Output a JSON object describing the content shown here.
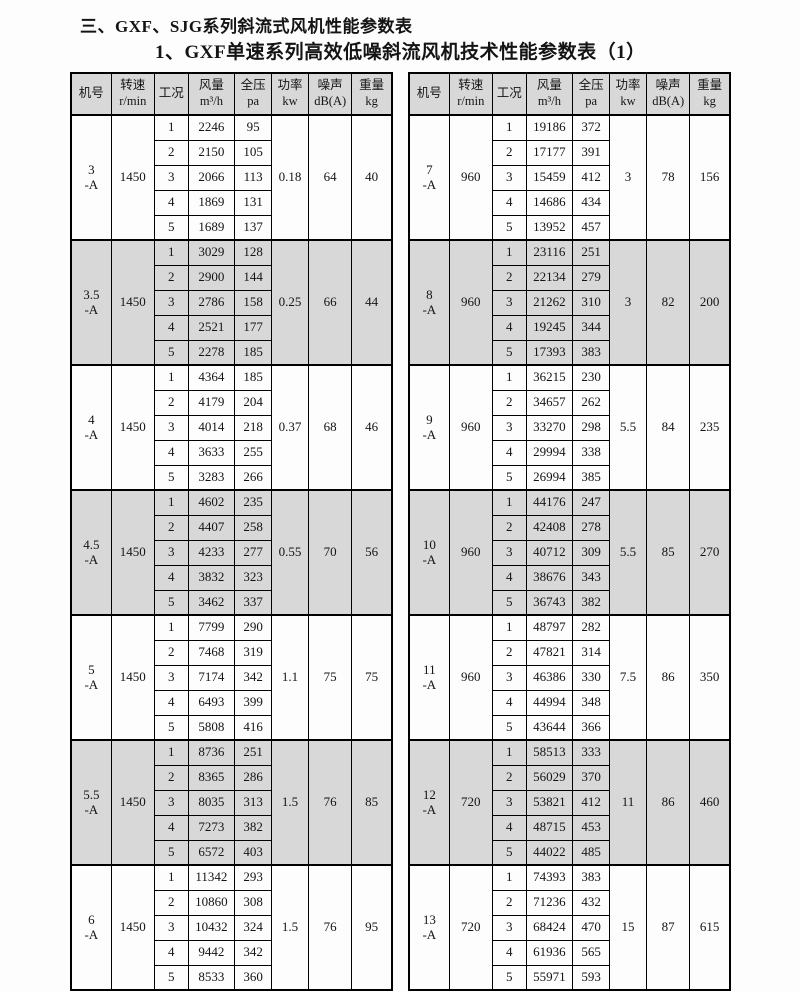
{
  "page": {
    "title": "三、GXF、SJG系列斜流式风机性能参数表",
    "subtitle": "1、GXF单速系列高效低噪斜流风机技术性能参数表（1）"
  },
  "colors": {
    "header_bg": "#d8d8d8",
    "shaded_section_bg": "#d8d8d8",
    "border": "#000000",
    "page_bg": "#fdfdfd"
  },
  "columns": [
    "机号",
    "转速\nr/min",
    "工况",
    "风量\nm³/h",
    "全压\npa",
    "功率\nkw",
    "噪声\ndB(A)",
    "重量\nkg"
  ],
  "tables": [
    {
      "name": "left",
      "sections": [
        {
          "model": "3\n-A",
          "speed": "1450",
          "power": "0.18",
          "noise": "64",
          "weight": "40",
          "shaded": false,
          "rows": [
            [
              "1",
              "2246",
              "95"
            ],
            [
              "2",
              "2150",
              "105"
            ],
            [
              "3",
              "2066",
              "113"
            ],
            [
              "4",
              "1869",
              "131"
            ],
            [
              "5",
              "1689",
              "137"
            ]
          ]
        },
        {
          "model": "3.5\n-A",
          "speed": "1450",
          "power": "0.25",
          "noise": "66",
          "weight": "44",
          "shaded": true,
          "rows": [
            [
              "1",
              "3029",
              "128"
            ],
            [
              "2",
              "2900",
              "144"
            ],
            [
              "3",
              "2786",
              "158"
            ],
            [
              "4",
              "2521",
              "177"
            ],
            [
              "5",
              "2278",
              "185"
            ]
          ]
        },
        {
          "model": "4\n-A",
          "speed": "1450",
          "power": "0.37",
          "noise": "68",
          "weight": "46",
          "shaded": false,
          "rows": [
            [
              "1",
              "4364",
              "185"
            ],
            [
              "2",
              "4179",
              "204"
            ],
            [
              "3",
              "4014",
              "218"
            ],
            [
              "4",
              "3633",
              "255"
            ],
            [
              "5",
              "3283",
              "266"
            ]
          ]
        },
        {
          "model": "4.5\n-A",
          "speed": "1450",
          "power": "0.55",
          "noise": "70",
          "weight": "56",
          "shaded": true,
          "rows": [
            [
              "1",
              "4602",
              "235"
            ],
            [
              "2",
              "4407",
              "258"
            ],
            [
              "3",
              "4233",
              "277"
            ],
            [
              "4",
              "3832",
              "323"
            ],
            [
              "5",
              "3462",
              "337"
            ]
          ]
        },
        {
          "model": "5\n-A",
          "speed": "1450",
          "power": "1.1",
          "noise": "75",
          "weight": "75",
          "shaded": false,
          "rows": [
            [
              "1",
              "7799",
              "290"
            ],
            [
              "2",
              "7468",
              "319"
            ],
            [
              "3",
              "7174",
              "342"
            ],
            [
              "4",
              "6493",
              "399"
            ],
            [
              "5",
              "5808",
              "416"
            ]
          ]
        },
        {
          "model": "5.5\n-A",
          "speed": "1450",
          "power": "1.5",
          "noise": "76",
          "weight": "85",
          "shaded": true,
          "rows": [
            [
              "1",
              "8736",
              "251"
            ],
            [
              "2",
              "8365",
              "286"
            ],
            [
              "3",
              "8035",
              "313"
            ],
            [
              "4",
              "7273",
              "382"
            ],
            [
              "5",
              "6572",
              "403"
            ]
          ]
        },
        {
          "model": "6\n-A",
          "speed": "1450",
          "power": "1.5",
          "noise": "76",
          "weight": "95",
          "shaded": false,
          "rows": [
            [
              "1",
              "11342",
              "293"
            ],
            [
              "2",
              "10860",
              "308"
            ],
            [
              "3",
              "10432",
              "324"
            ],
            [
              "4",
              "9442",
              "342"
            ],
            [
              "5",
              "8533",
              "360"
            ]
          ]
        }
      ]
    },
    {
      "name": "right",
      "sections": [
        {
          "model": "7\n-A",
          "speed": "960",
          "power": "3",
          "noise": "78",
          "weight": "156",
          "shaded": false,
          "rows": [
            [
              "1",
              "19186",
              "372"
            ],
            [
              "2",
              "17177",
              "391"
            ],
            [
              "3",
              "15459",
              "412"
            ],
            [
              "4",
              "14686",
              "434"
            ],
            [
              "5",
              "13952",
              "457"
            ]
          ]
        },
        {
          "model": "8\n-A",
          "speed": "960",
          "power": "3",
          "noise": "82",
          "weight": "200",
          "shaded": true,
          "rows": [
            [
              "1",
              "23116",
              "251"
            ],
            [
              "2",
              "22134",
              "279"
            ],
            [
              "3",
              "21262",
              "310"
            ],
            [
              "4",
              "19245",
              "344"
            ],
            [
              "5",
              "17393",
              "383"
            ]
          ]
        },
        {
          "model": "9\n-A",
          "speed": "960",
          "power": "5.5",
          "noise": "84",
          "weight": "235",
          "shaded": false,
          "rows": [
            [
              "1",
              "36215",
              "230"
            ],
            [
              "2",
              "34657",
              "262"
            ],
            [
              "3",
              "33270",
              "298"
            ],
            [
              "4",
              "29994",
              "338"
            ],
            [
              "5",
              "26994",
              "385"
            ]
          ]
        },
        {
          "model": "10\n-A",
          "speed": "960",
          "power": "5.5",
          "noise": "85",
          "weight": "270",
          "shaded": true,
          "rows": [
            [
              "1",
              "44176",
              "247"
            ],
            [
              "2",
              "42408",
              "278"
            ],
            [
              "3",
              "40712",
              "309"
            ],
            [
              "4",
              "38676",
              "343"
            ],
            [
              "5",
              "36743",
              "382"
            ]
          ]
        },
        {
          "model": "11\n-A",
          "speed": "960",
          "power": "7.5",
          "noise": "86",
          "weight": "350",
          "shaded": false,
          "rows": [
            [
              "1",
              "48797",
              "282"
            ],
            [
              "2",
              "47821",
              "314"
            ],
            [
              "3",
              "46386",
              "330"
            ],
            [
              "4",
              "44994",
              "348"
            ],
            [
              "5",
              "43644",
              "366"
            ]
          ]
        },
        {
          "model": "12\n-A",
          "speed": "720",
          "power": "11",
          "noise": "86",
          "weight": "460",
          "shaded": true,
          "rows": [
            [
              "1",
              "58513",
              "333"
            ],
            [
              "2",
              "56029",
              "370"
            ],
            [
              "3",
              "53821",
              "412"
            ],
            [
              "4",
              "48715",
              "453"
            ],
            [
              "5",
              "44022",
              "485"
            ]
          ]
        },
        {
          "model": "13\n-A",
          "speed": "720",
          "power": "15",
          "noise": "87",
          "weight": "615",
          "shaded": false,
          "rows": [
            [
              "1",
              "74393",
              "383"
            ],
            [
              "2",
              "71236",
              "432"
            ],
            [
              "3",
              "68424",
              "470"
            ],
            [
              "4",
              "61936",
              "565"
            ],
            [
              "5",
              "55971",
              "593"
            ]
          ]
        }
      ]
    }
  ]
}
